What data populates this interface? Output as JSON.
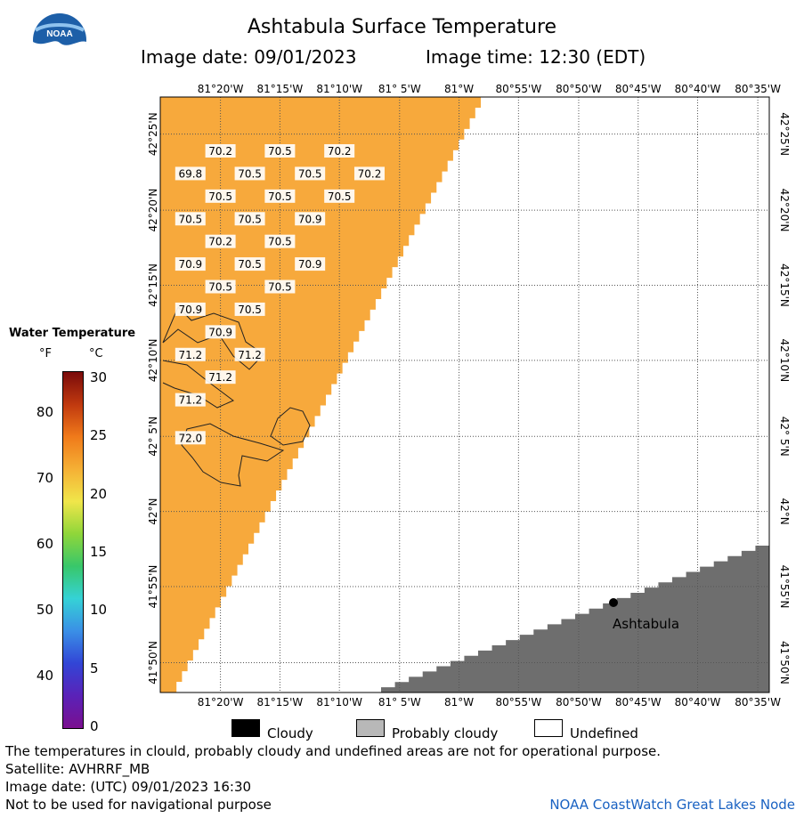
{
  "header": {
    "title": "Ashtabula Surface Temperature",
    "image_date": "Image date: 09/01/2023",
    "image_time": "Image time: 12:30 (EDT)"
  },
  "logo": {
    "text": "NOAA"
  },
  "longitude_labels": [
    "81°20'W",
    "81°15'W",
    "81°10'W",
    "81° 5'W",
    "81°W",
    "80°55'W",
    "80°50'W",
    "80°45'W",
    "80°40'W",
    "80°35'W"
  ],
  "latitude_labels": [
    "42°25'N",
    "42°20'N",
    "42°15'N",
    "42°10'N",
    "42° 5'N",
    "42°N",
    "41°55'N",
    "41°50'N"
  ],
  "temperature_labels": [
    {
      "lat": 42.398,
      "lon": -81.333,
      "value": "70.2"
    },
    {
      "lat": 42.398,
      "lon": -81.25,
      "value": "70.5"
    },
    {
      "lat": 42.398,
      "lon": -81.167,
      "value": "70.2"
    },
    {
      "lat": 42.373,
      "lon": -81.375,
      "value": "69.8"
    },
    {
      "lat": 42.373,
      "lon": -81.292,
      "value": "70.5"
    },
    {
      "lat": 42.373,
      "lon": -81.208,
      "value": "70.5"
    },
    {
      "lat": 42.373,
      "lon": -81.125,
      "value": "70.2"
    },
    {
      "lat": 42.348,
      "lon": -81.333,
      "value": "70.5"
    },
    {
      "lat": 42.348,
      "lon": -81.25,
      "value": "70.5"
    },
    {
      "lat": 42.348,
      "lon": -81.167,
      "value": "70.5"
    },
    {
      "lat": 42.323,
      "lon": -81.375,
      "value": "70.5"
    },
    {
      "lat": 42.323,
      "lon": -81.292,
      "value": "70.5"
    },
    {
      "lat": 42.323,
      "lon": -81.208,
      "value": "70.9"
    },
    {
      "lat": 42.298,
      "lon": -81.333,
      "value": "70.2"
    },
    {
      "lat": 42.298,
      "lon": -81.25,
      "value": "70.5"
    },
    {
      "lat": 42.273,
      "lon": -81.375,
      "value": "70.9"
    },
    {
      "lat": 42.273,
      "lon": -81.292,
      "value": "70.5"
    },
    {
      "lat": 42.273,
      "lon": -81.208,
      "value": "70.9"
    },
    {
      "lat": 42.248,
      "lon": -81.333,
      "value": "70.5"
    },
    {
      "lat": 42.248,
      "lon": -81.25,
      "value": "70.5"
    },
    {
      "lat": 42.223,
      "lon": -81.375,
      "value": "70.9"
    },
    {
      "lat": 42.223,
      "lon": -81.292,
      "value": "70.5"
    },
    {
      "lat": 42.198,
      "lon": -81.333,
      "value": "70.9"
    },
    {
      "lat": 42.173,
      "lon": -81.375,
      "value": "71.2"
    },
    {
      "lat": 42.173,
      "lon": -81.292,
      "value": "71.2"
    },
    {
      "lat": 42.148,
      "lon": -81.333,
      "value": "71.2"
    },
    {
      "lat": 42.123,
      "lon": -81.375,
      "value": "71.2"
    },
    {
      "lat": 42.081,
      "lon": -81.375,
      "value": "72.0"
    }
  ],
  "place_label": "Ashtabula",
  "legend": {
    "title": "Water Temperature",
    "unit_f": "°F",
    "unit_c": "°C",
    "f_ticks": [
      "80",
      "70",
      "60",
      "50",
      "40"
    ],
    "c_ticks": [
      "30",
      "25",
      "20",
      "15",
      "10",
      "5",
      "0"
    ],
    "colors": [
      "#7a0b0b",
      "#c0390f",
      "#f07a1a",
      "#f5b035",
      "#f0e64a",
      "#8fd63a",
      "#38c76a",
      "#35d2d6",
      "#3a8fe6",
      "#3245d6",
      "#5a22b8",
      "#7a0f8f"
    ]
  },
  "key": {
    "cloudy": "Cloudy",
    "probably_cloudy": "Probably cloudy",
    "undefined": "Undefined"
  },
  "notes": {
    "line1": "The temperatures in clould, probably cloudy and undefined areas are not for operational purpose.",
    "line2": "Satellite: AVHRRF_MB",
    "line3": "Image date: (UTC) 09/01/2023  16:30",
    "line4": "Not to be used for navigational purpose",
    "credit": "NOAA CoastWatch Great Lakes Node"
  },
  "colors": {
    "water": "#f7a93c",
    "land": "#6e6e6e",
    "credit": "#1a62c2"
  }
}
